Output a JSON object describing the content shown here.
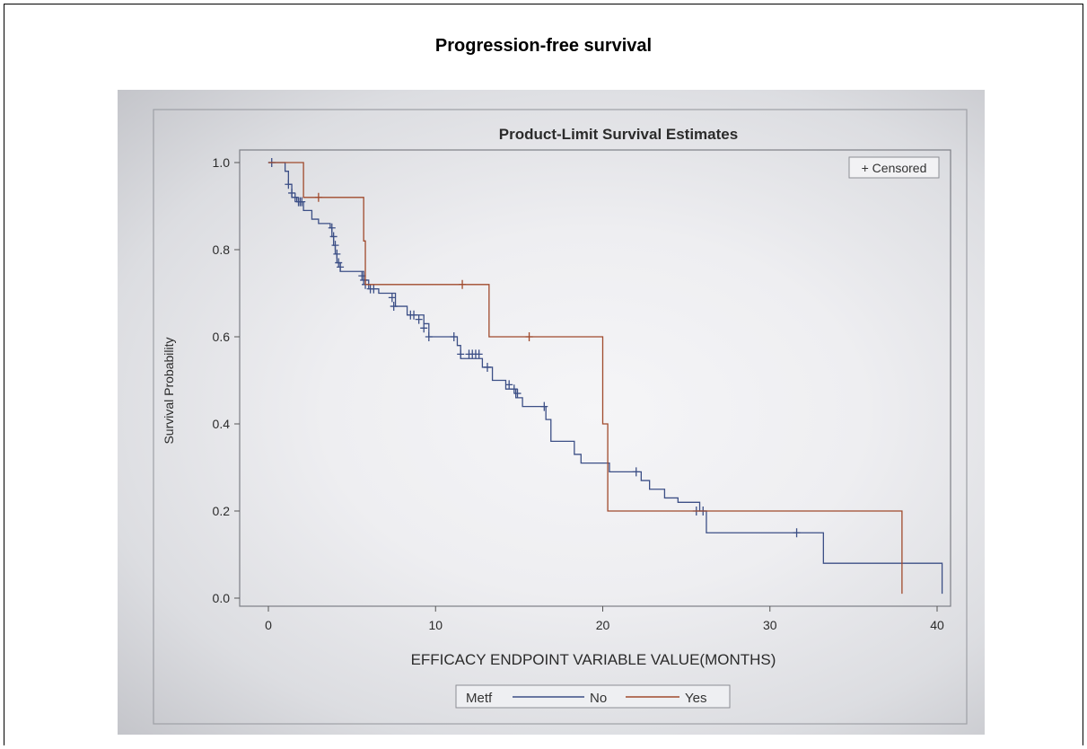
{
  "page": {
    "title": "Progression-free survival"
  },
  "chart_data": {
    "type": "line",
    "title": "Product-Limit Survival Estimates",
    "xlabel": "EFFICACY ENDPOINT VARIABLE VALUE(MONTHS)",
    "ylabel": "Survival Probability",
    "xlim": [
      0,
      40.5
    ],
    "ylim": [
      0,
      1.0
    ],
    "xticks": [
      0,
      10,
      20,
      30,
      40
    ],
    "yticks": [
      0.0,
      0.2,
      0.4,
      0.6,
      0.8,
      1.0
    ],
    "ytick_labels": [
      "0.0",
      "0.2",
      "0.4",
      "0.6",
      "0.8",
      "1.0"
    ],
    "grid": false,
    "censored_legend": "+ Censored",
    "legend": {
      "title": "Metf",
      "placement": "bottom"
    },
    "series": [
      {
        "name": "No",
        "color": "#3c4f86",
        "steps": [
          [
            0,
            1.0
          ],
          [
            1.0,
            0.98
          ],
          [
            1.2,
            0.95
          ],
          [
            1.4,
            0.92
          ],
          [
            1.7,
            0.91
          ],
          [
            2.1,
            0.89
          ],
          [
            2.6,
            0.87
          ],
          [
            3.0,
            0.86
          ],
          [
            3.7,
            0.85
          ],
          [
            3.8,
            0.83
          ],
          [
            3.9,
            0.81
          ],
          [
            4.0,
            0.79
          ],
          [
            4.1,
            0.77
          ],
          [
            4.3,
            0.75
          ],
          [
            5.7,
            0.73
          ],
          [
            6.0,
            0.71
          ],
          [
            6.6,
            0.7
          ],
          [
            7.6,
            0.67
          ],
          [
            8.3,
            0.65
          ],
          [
            9.3,
            0.63
          ],
          [
            9.6,
            0.6
          ],
          [
            11.3,
            0.58
          ],
          [
            11.5,
            0.55
          ],
          [
            12.8,
            0.53
          ],
          [
            13.4,
            0.5
          ],
          [
            14.2,
            0.48
          ],
          [
            14.8,
            0.46
          ],
          [
            15.2,
            0.44
          ],
          [
            16.6,
            0.41
          ],
          [
            16.9,
            0.36
          ],
          [
            18.3,
            0.33
          ],
          [
            18.7,
            0.31
          ],
          [
            20.4,
            0.29
          ],
          [
            22.3,
            0.27
          ],
          [
            22.8,
            0.25
          ],
          [
            23.7,
            0.23
          ],
          [
            24.5,
            0.22
          ],
          [
            25.8,
            0.2
          ],
          [
            26.2,
            0.15
          ],
          [
            33.2,
            0.08
          ],
          [
            40.3,
            0.01
          ]
        ],
        "censored": [
          [
            0.2,
            1.0
          ],
          [
            1.2,
            0.95
          ],
          [
            1.4,
            0.93
          ],
          [
            1.6,
            0.92
          ],
          [
            1.8,
            0.91
          ],
          [
            1.9,
            0.91
          ],
          [
            2.0,
            0.91
          ],
          [
            3.8,
            0.85
          ],
          [
            3.9,
            0.83
          ],
          [
            4.0,
            0.81
          ],
          [
            4.1,
            0.79
          ],
          [
            4.2,
            0.77
          ],
          [
            4.3,
            0.76
          ],
          [
            5.6,
            0.74
          ],
          [
            5.7,
            0.73
          ],
          [
            5.8,
            0.72
          ],
          [
            6.1,
            0.71
          ],
          [
            6.3,
            0.71
          ],
          [
            7.4,
            0.69
          ],
          [
            7.5,
            0.67
          ],
          [
            8.5,
            0.65
          ],
          [
            8.7,
            0.65
          ],
          [
            9.0,
            0.64
          ],
          [
            9.3,
            0.62
          ],
          [
            9.6,
            0.6
          ],
          [
            11.1,
            0.6
          ],
          [
            11.5,
            0.56
          ],
          [
            12.0,
            0.56
          ],
          [
            12.2,
            0.56
          ],
          [
            12.4,
            0.56
          ],
          [
            12.6,
            0.56
          ],
          [
            13.1,
            0.53
          ],
          [
            14.4,
            0.49
          ],
          [
            14.7,
            0.48
          ],
          [
            14.9,
            0.47
          ],
          [
            16.5,
            0.44
          ],
          [
            22.0,
            0.29
          ],
          [
            25.6,
            0.2
          ],
          [
            26.0,
            0.2
          ],
          [
            31.6,
            0.15
          ]
        ]
      },
      {
        "name": "Yes",
        "color": "#a04a2c",
        "steps": [
          [
            0,
            1.0
          ],
          [
            2.1,
            0.92
          ],
          [
            5.7,
            0.82
          ],
          [
            5.8,
            0.72
          ],
          [
            13.2,
            0.6
          ],
          [
            20.0,
            0.4
          ],
          [
            20.3,
            0.2
          ],
          [
            37.9,
            0.01
          ]
        ],
        "censored": [
          [
            3.0,
            0.92
          ],
          [
            11.6,
            0.72
          ],
          [
            15.6,
            0.6
          ]
        ]
      }
    ]
  }
}
